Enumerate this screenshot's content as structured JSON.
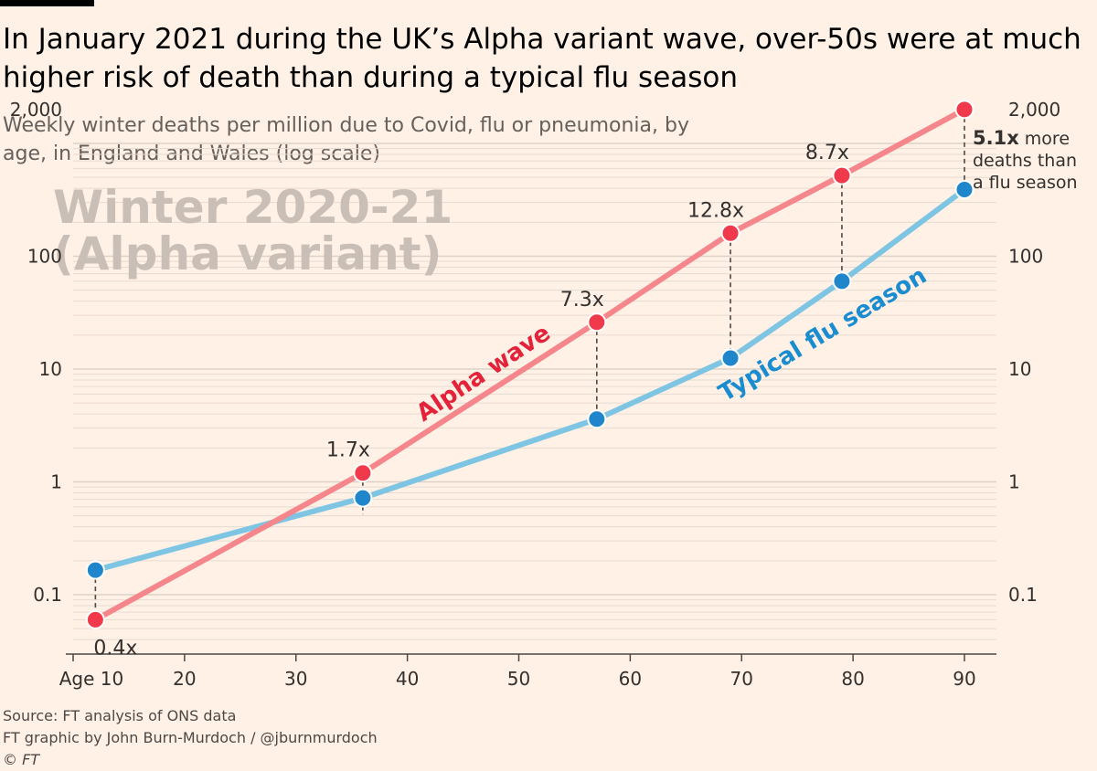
{
  "header": {
    "title": "In January 2021 during the UK’s Alpha variant wave, over-50s were at much higher risk of death than during a typical flu season",
    "subtitle": "Weekly winter deaths per million due to Covid, flu or pneumonia, by age, in England and Wales (log scale)"
  },
  "footer": {
    "source": "Source: FT analysis of ONS data",
    "credit": "FT graphic by John Burn-Murdoch / @jburnmurdoch",
    "copyright": "© FT"
  },
  "colors": {
    "background": "#fff1e5",
    "alpha_line": "#f4868c",
    "alpha_point": "#f03a4b",
    "flu_line": "#7ec5e3",
    "flu_point": "#1f86cb",
    "alpha_label": "#e4223a",
    "flu_label": "#1a8dd1",
    "watermark": "#c9bfb7",
    "text": "#33302e",
    "grid": "#e6dbd2"
  },
  "chart_data": {
    "type": "line",
    "yscale": "log",
    "ylim": [
      0.035,
      2000
    ],
    "xlim": [
      10,
      90
    ],
    "xlabel": "Age",
    "x_ticks": [
      10,
      20,
      30,
      40,
      50,
      60,
      70,
      80,
      90
    ],
    "x_tick_labels": [
      "Age 10",
      "20",
      "30",
      "40",
      "50",
      "60",
      "70",
      "80",
      "90"
    ],
    "y_ticks": [
      0.1,
      1,
      10,
      100,
      2000
    ],
    "y_tick_labels": [
      "0.1",
      "1",
      "10",
      "100",
      "2,000"
    ],
    "x": [
      12,
      36,
      57,
      69,
      79,
      90
    ],
    "series": [
      {
        "name": "Alpha wave",
        "label": "Alpha wave",
        "values": [
          0.06,
          1.2,
          26,
          160,
          520,
          2000
        ]
      },
      {
        "name": "Typical flu season",
        "label": "Typical flu season",
        "values": [
          0.165,
          0.72,
          3.6,
          12.5,
          60,
          390
        ]
      }
    ],
    "ratio_labels": [
      "0.4x",
      "1.7x",
      "7.3x",
      "12.8x",
      "8.7x",
      "5.1x"
    ],
    "final_annotation": {
      "ratio": "5.1x",
      "lines": [
        "more",
        "deaths than",
        "a flu season"
      ]
    },
    "watermark": [
      "Winter 2020-21",
      "(Alpha variant)"
    ]
  }
}
